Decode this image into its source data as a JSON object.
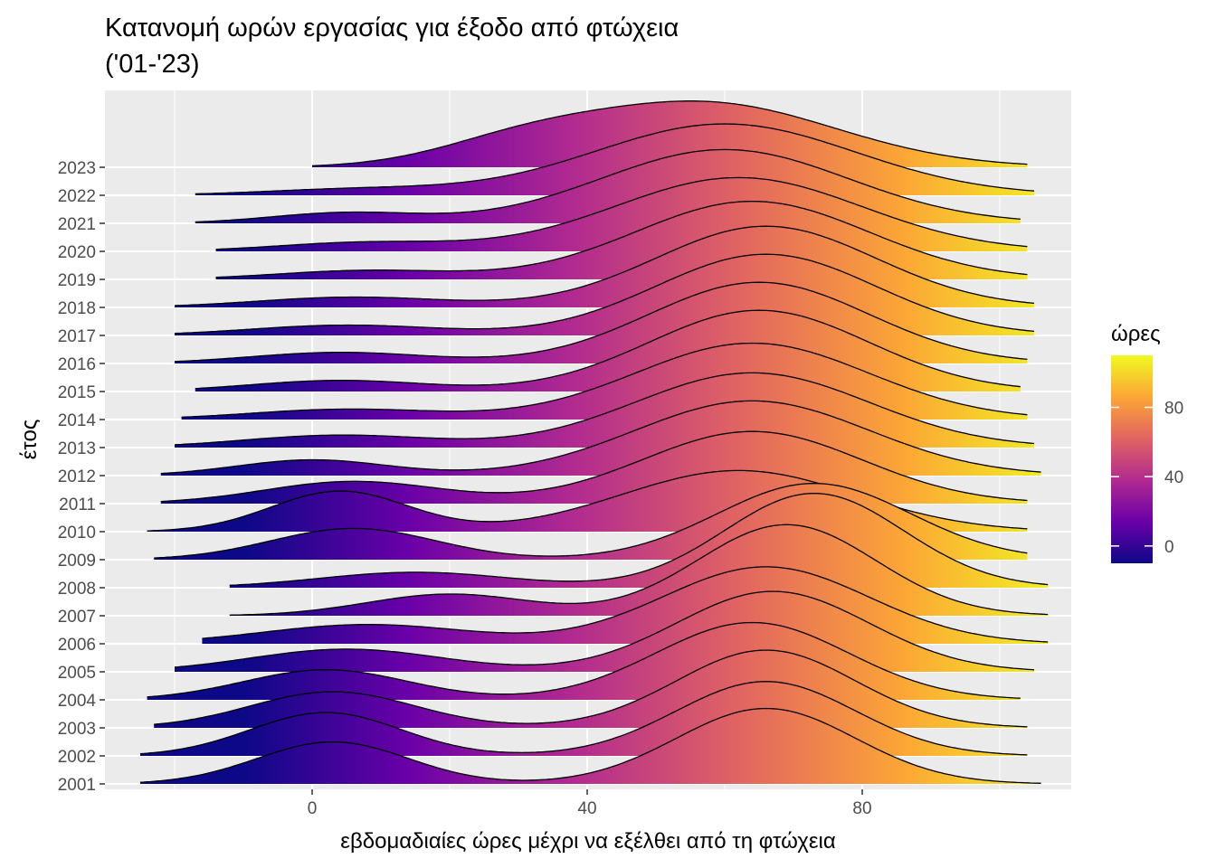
{
  "chart_data": {
    "type": "ridgeline",
    "title_line1": "Κατανομή ωρών εργασίας για έξοδο από φτώχεια",
    "title_line2": "('01-'23)",
    "xlabel": "εβδομαδιαίες ώρες μέχρι να εξέλθει από τη φτώχεια",
    "ylabel": "έτος",
    "xlim": [
      -30,
      110
    ],
    "x_ticks": [
      0,
      40,
      80
    ],
    "x_tick_labels": [
      "0",
      "40",
      "80"
    ],
    "y_categories": [
      "2001",
      "2002",
      "2003",
      "2004",
      "2005",
      "2006",
      "2007",
      "2008",
      "2009",
      "2010",
      "2011",
      "2012",
      "2013",
      "2014",
      "2015",
      "2016",
      "2017",
      "2018",
      "2019",
      "2020",
      "2021",
      "2022",
      "2023"
    ],
    "legend": {
      "title": "ώρες",
      "range": [
        -10,
        110
      ],
      "ticks": [
        0,
        40,
        80
      ],
      "tick_labels": [
        "0",
        "40",
        "80"
      ],
      "palette": [
        "#0d0887",
        "#6a00a8",
        "#b12a90",
        "#e16462",
        "#fca636",
        "#f0f921"
      ],
      "placement": "right"
    },
    "series": [
      {
        "year": "2001",
        "min": -25,
        "max": 106,
        "components": [
          {
            "mu": 3,
            "sd": 11,
            "w": 0.32
          },
          {
            "mu": 66,
            "sd": 13,
            "w": 0.68
          }
        ]
      },
      {
        "year": "2002",
        "min": -25,
        "max": 104,
        "components": [
          {
            "mu": 2,
            "sd": 11,
            "w": 0.33
          },
          {
            "mu": 66,
            "sd": 13,
            "w": 0.67
          }
        ]
      },
      {
        "year": "2003",
        "min": -23,
        "max": 104,
        "components": [
          {
            "mu": 3,
            "sd": 12,
            "w": 0.3
          },
          {
            "mu": 66,
            "sd": 13,
            "w": 0.7
          }
        ]
      },
      {
        "year": "2004",
        "min": -24,
        "max": 103,
        "components": [
          {
            "mu": 2,
            "sd": 12,
            "w": 0.25
          },
          {
            "mu": 64,
            "sd": 14,
            "w": 0.75
          }
        ]
      },
      {
        "year": "2005",
        "min": -20,
        "max": 105,
        "components": [
          {
            "mu": 5,
            "sd": 14,
            "w": 0.22
          },
          {
            "mu": 67,
            "sd": 14,
            "w": 0.78
          }
        ]
      },
      {
        "year": "2006",
        "min": -16,
        "max": 107,
        "components": [
          {
            "mu": 8,
            "sd": 15,
            "w": 0.2
          },
          {
            "mu": 66,
            "sd": 15,
            "w": 0.8
          }
        ]
      },
      {
        "year": "2007",
        "min": -12,
        "max": 107,
        "components": [
          {
            "mu": 20,
            "sd": 12,
            "w": 0.18
          },
          {
            "mu": 69,
            "sd": 13,
            "w": 0.82
          }
        ]
      },
      {
        "year": "2008",
        "min": -12,
        "max": 107,
        "components": [
          {
            "mu": 15,
            "sd": 14,
            "w": 0.15
          },
          {
            "mu": 73,
            "sd": 13,
            "w": 0.85
          }
        ]
      },
      {
        "year": "2009",
        "min": -23,
        "max": 104,
        "components": [
          {
            "mu": 6,
            "sd": 12,
            "w": 0.26
          },
          {
            "mu": 73,
            "sd": 14,
            "w": 0.74
          }
        ]
      },
      {
        "year": "2010",
        "min": -24,
        "max": 104,
        "components": [
          {
            "mu": 4,
            "sd": 10,
            "w": 0.28
          },
          {
            "mu": 62,
            "sd": 17,
            "w": 0.72
          }
        ]
      },
      {
        "year": "2011",
        "min": -22,
        "max": 104,
        "components": [
          {
            "mu": 6,
            "sd": 13,
            "w": 0.2
          },
          {
            "mu": 64,
            "sd": 16,
            "w": 0.8
          }
        ]
      },
      {
        "year": "2012",
        "min": -22,
        "max": 106,
        "components": [
          {
            "mu": 0,
            "sd": 11,
            "w": 0.12
          },
          {
            "mu": 64,
            "sd": 17,
            "w": 0.88
          }
        ]
      },
      {
        "year": "2013",
        "min": -20,
        "max": 105,
        "components": [
          {
            "mu": 4,
            "sd": 14,
            "w": 0.12
          },
          {
            "mu": 64,
            "sd": 17,
            "w": 0.88
          }
        ]
      },
      {
        "year": "2014",
        "min": -19,
        "max": 104,
        "components": [
          {
            "mu": 5,
            "sd": 14,
            "w": 0.1
          },
          {
            "mu": 64,
            "sd": 17,
            "w": 0.9
          }
        ]
      },
      {
        "year": "2015",
        "min": -17,
        "max": 103,
        "components": [
          {
            "mu": 4,
            "sd": 13,
            "w": 0.1
          },
          {
            "mu": 65,
            "sd": 16,
            "w": 0.9
          }
        ]
      },
      {
        "year": "2016",
        "min": -20,
        "max": 104,
        "components": [
          {
            "mu": 4,
            "sd": 13,
            "w": 0.1
          },
          {
            "mu": 65,
            "sd": 16,
            "w": 0.9
          }
        ]
      },
      {
        "year": "2017",
        "min": -20,
        "max": 105,
        "components": [
          {
            "mu": 5,
            "sd": 14,
            "w": 0.1
          },
          {
            "mu": 66,
            "sd": 16,
            "w": 0.9
          }
        ]
      },
      {
        "year": "2018",
        "min": -20,
        "max": 105,
        "components": [
          {
            "mu": 6,
            "sd": 14,
            "w": 0.1
          },
          {
            "mu": 66,
            "sd": 16,
            "w": 0.9
          }
        ]
      },
      {
        "year": "2019",
        "min": -14,
        "max": 104,
        "components": [
          {
            "mu": 8,
            "sd": 13,
            "w": 0.08
          },
          {
            "mu": 64,
            "sd": 17,
            "w": 0.92
          }
        ]
      },
      {
        "year": "2020",
        "min": -14,
        "max": 104,
        "components": [
          {
            "mu": 8,
            "sd": 13,
            "w": 0.08
          },
          {
            "mu": 62,
            "sd": 18,
            "w": 0.92
          }
        ]
      },
      {
        "year": "2021",
        "min": -17,
        "max": 103,
        "components": [
          {
            "mu": 5,
            "sd": 11,
            "w": 0.08
          },
          {
            "mu": 60,
            "sd": 18,
            "w": 0.92
          }
        ]
      },
      {
        "year": "2022",
        "min": -17,
        "max": 105,
        "components": [
          {
            "mu": 7,
            "sd": 14,
            "w": 0.06
          },
          {
            "mu": 60,
            "sd": 19,
            "w": 0.94
          }
        ]
      },
      {
        "year": "2023",
        "min": 0,
        "max": 104,
        "components": [
          {
            "mu": 30,
            "sd": 12,
            "w": 0.15
          },
          {
            "mu": 57,
            "sd": 19,
            "w": 0.85
          }
        ]
      }
    ]
  }
}
